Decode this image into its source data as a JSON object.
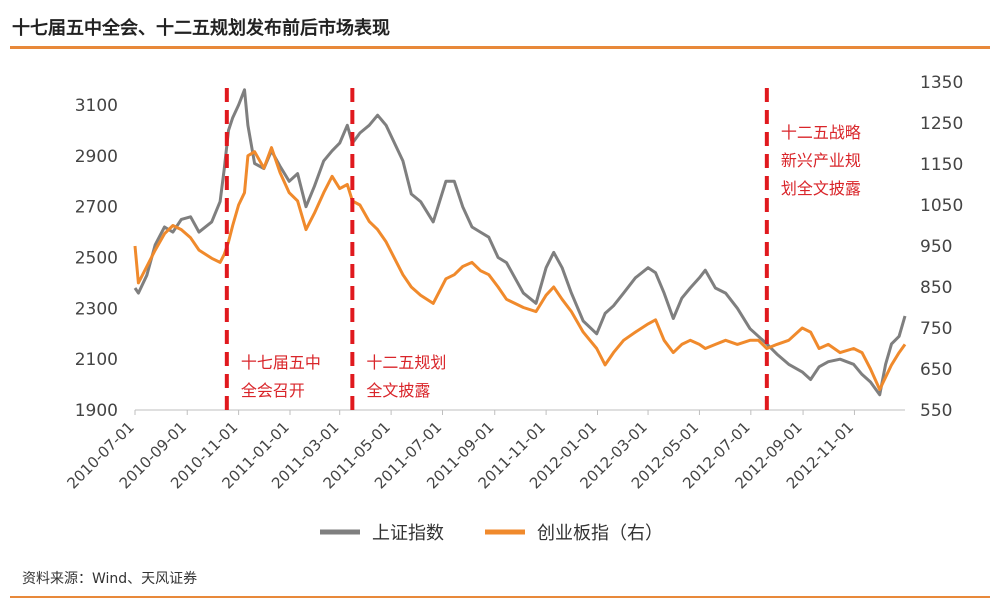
{
  "title": "十七届五中全会、十二五规划发布前后市场表现",
  "source": "资料来源：Wind、天风证券",
  "chart_data": {
    "type": "line",
    "x_ticks": [
      "2010-07-01",
      "2010-09-01",
      "2010-11-01",
      "2011-01-01",
      "2011-03-01",
      "2011-05-01",
      "2011-07-01",
      "2011-09-01",
      "2011-11-01",
      "2012-01-01",
      "2012-03-01",
      "2012-05-01",
      "2012-07-01",
      "2012-09-01",
      "2012-11-01"
    ],
    "y_left": {
      "min": 1900,
      "max": 3100,
      "ticks": [
        "3100",
        "2900",
        "2700",
        "2500",
        "2300",
        "2100",
        "1900"
      ]
    },
    "y_right": {
      "min": 550,
      "max": 1350,
      "ticks": [
        "1350",
        "1250",
        "1150",
        "1050",
        "950",
        "850",
        "750",
        "650",
        "550"
      ]
    },
    "x_range": [
      "2010-07-01",
      "2012-12-31"
    ],
    "series": [
      {
        "name": "上证指数",
        "axis": "left",
        "color": "#7f7f7f",
        "points": [
          [
            "2010-07-01",
            2380
          ],
          [
            "2010-07-05",
            2360
          ],
          [
            "2010-07-15",
            2430
          ],
          [
            "2010-07-25",
            2550
          ],
          [
            "2010-08-05",
            2620
          ],
          [
            "2010-08-15",
            2600
          ],
          [
            "2010-08-25",
            2650
          ],
          [
            "2010-09-05",
            2660
          ],
          [
            "2010-09-15",
            2600
          ],
          [
            "2010-09-30",
            2640
          ],
          [
            "2010-10-10",
            2720
          ],
          [
            "2010-10-15",
            2850
          ],
          [
            "2010-10-20",
            3000
          ],
          [
            "2010-10-25",
            3050
          ],
          [
            "2010-11-01",
            3100
          ],
          [
            "2010-11-08",
            3160
          ],
          [
            "2010-11-12",
            3020
          ],
          [
            "2010-11-20",
            2870
          ],
          [
            "2010-12-01",
            2850
          ],
          [
            "2010-12-10",
            2920
          ],
          [
            "2010-12-20",
            2860
          ],
          [
            "2010-12-31",
            2800
          ],
          [
            "2011-01-10",
            2830
          ],
          [
            "2011-01-20",
            2700
          ],
          [
            "2011-01-30",
            2780
          ],
          [
            "2011-02-10",
            2880
          ],
          [
            "2011-02-20",
            2920
          ],
          [
            "2011-03-01",
            2950
          ],
          [
            "2011-03-10",
            3020
          ],
          [
            "2011-03-16",
            2950
          ],
          [
            "2011-03-25",
            2990
          ],
          [
            "2011-04-05",
            3020
          ],
          [
            "2011-04-15",
            3060
          ],
          [
            "2011-04-25",
            3020
          ],
          [
            "2011-05-05",
            2950
          ],
          [
            "2011-05-15",
            2880
          ],
          [
            "2011-05-25",
            2750
          ],
          [
            "2011-06-05",
            2720
          ],
          [
            "2011-06-20",
            2640
          ],
          [
            "2011-07-05",
            2800
          ],
          [
            "2011-07-15",
            2800
          ],
          [
            "2011-07-25",
            2700
          ],
          [
            "2011-08-05",
            2620
          ],
          [
            "2011-08-15",
            2600
          ],
          [
            "2011-08-25",
            2580
          ],
          [
            "2011-09-05",
            2500
          ],
          [
            "2011-09-15",
            2480
          ],
          [
            "2011-09-25",
            2420
          ],
          [
            "2011-10-05",
            2360
          ],
          [
            "2011-10-20",
            2320
          ],
          [
            "2011-11-01",
            2460
          ],
          [
            "2011-11-10",
            2520
          ],
          [
            "2011-11-20",
            2460
          ],
          [
            "2011-12-01",
            2360
          ],
          [
            "2011-12-15",
            2250
          ],
          [
            "2011-12-31",
            2200
          ],
          [
            "2012-01-10",
            2280
          ],
          [
            "2012-01-20",
            2310
          ],
          [
            "2012-02-01",
            2360
          ],
          [
            "2012-02-15",
            2420
          ],
          [
            "2012-03-01",
            2460
          ],
          [
            "2012-03-10",
            2440
          ],
          [
            "2012-03-20",
            2360
          ],
          [
            "2012-03-31",
            2260
          ],
          [
            "2012-04-10",
            2340
          ],
          [
            "2012-04-20",
            2380
          ],
          [
            "2012-05-01",
            2420
          ],
          [
            "2012-05-08",
            2450
          ],
          [
            "2012-05-20",
            2380
          ],
          [
            "2012-06-01",
            2360
          ],
          [
            "2012-06-15",
            2300
          ],
          [
            "2012-06-30",
            2220
          ],
          [
            "2012-07-10",
            2190
          ],
          [
            "2012-07-20",
            2160
          ],
          [
            "2012-08-01",
            2120
          ],
          [
            "2012-08-15",
            2080
          ],
          [
            "2012-08-31",
            2050
          ],
          [
            "2012-09-10",
            2020
          ],
          [
            "2012-09-20",
            2070
          ],
          [
            "2012-10-01",
            2090
          ],
          [
            "2012-10-15",
            2100
          ],
          [
            "2012-10-31",
            2080
          ],
          [
            "2012-11-10",
            2040
          ],
          [
            "2012-11-20",
            2010
          ],
          [
            "2012-12-01",
            1960
          ],
          [
            "2012-12-08",
            2080
          ],
          [
            "2012-12-15",
            2160
          ],
          [
            "2012-12-24",
            2190
          ],
          [
            "2012-12-31",
            2270
          ]
        ]
      },
      {
        "name": "创业板指（右）",
        "axis": "right",
        "color": "#f08a2c",
        "points": [
          [
            "2010-07-01",
            950
          ],
          [
            "2010-07-05",
            860
          ],
          [
            "2010-07-15",
            900
          ],
          [
            "2010-07-25",
            940
          ],
          [
            "2010-08-05",
            980
          ],
          [
            "2010-08-15",
            1000
          ],
          [
            "2010-08-25",
            990
          ],
          [
            "2010-09-05",
            970
          ],
          [
            "2010-09-15",
            940
          ],
          [
            "2010-09-30",
            920
          ],
          [
            "2010-10-10",
            910
          ],
          [
            "2010-10-15",
            930
          ],
          [
            "2010-10-20",
            960
          ],
          [
            "2010-10-25",
            1000
          ],
          [
            "2010-11-01",
            1050
          ],
          [
            "2010-11-08",
            1080
          ],
          [
            "2010-11-12",
            1170
          ],
          [
            "2010-11-20",
            1180
          ],
          [
            "2010-12-01",
            1140
          ],
          [
            "2010-12-10",
            1190
          ],
          [
            "2010-12-20",
            1130
          ],
          [
            "2010-12-31",
            1080
          ],
          [
            "2011-01-10",
            1060
          ],
          [
            "2011-01-20",
            990
          ],
          [
            "2011-01-30",
            1030
          ],
          [
            "2011-02-10",
            1080
          ],
          [
            "2011-02-20",
            1120
          ],
          [
            "2011-03-01",
            1090
          ],
          [
            "2011-03-10",
            1100
          ],
          [
            "2011-03-16",
            1060
          ],
          [
            "2011-03-25",
            1050
          ],
          [
            "2011-04-05",
            1010
          ],
          [
            "2011-04-15",
            990
          ],
          [
            "2011-04-25",
            960
          ],
          [
            "2011-05-05",
            920
          ],
          [
            "2011-05-15",
            880
          ],
          [
            "2011-05-25",
            850
          ],
          [
            "2011-06-05",
            830
          ],
          [
            "2011-06-20",
            810
          ],
          [
            "2011-07-05",
            870
          ],
          [
            "2011-07-15",
            880
          ],
          [
            "2011-07-25",
            900
          ],
          [
            "2011-08-05",
            910
          ],
          [
            "2011-08-15",
            890
          ],
          [
            "2011-08-25",
            880
          ],
          [
            "2011-09-05",
            850
          ],
          [
            "2011-09-15",
            820
          ],
          [
            "2011-09-25",
            810
          ],
          [
            "2011-10-05",
            800
          ],
          [
            "2011-10-20",
            790
          ],
          [
            "2011-11-01",
            830
          ],
          [
            "2011-11-10",
            850
          ],
          [
            "2011-11-20",
            820
          ],
          [
            "2011-12-01",
            790
          ],
          [
            "2011-12-15",
            740
          ],
          [
            "2011-12-31",
            700
          ],
          [
            "2012-01-10",
            660
          ],
          [
            "2012-01-20",
            690
          ],
          [
            "2012-02-01",
            720
          ],
          [
            "2012-02-15",
            740
          ],
          [
            "2012-03-01",
            760
          ],
          [
            "2012-03-10",
            770
          ],
          [
            "2012-03-20",
            720
          ],
          [
            "2012-03-31",
            690
          ],
          [
            "2012-04-10",
            710
          ],
          [
            "2012-04-20",
            720
          ],
          [
            "2012-05-01",
            710
          ],
          [
            "2012-05-08",
            700
          ],
          [
            "2012-05-20",
            710
          ],
          [
            "2012-06-01",
            720
          ],
          [
            "2012-06-15",
            710
          ],
          [
            "2012-06-30",
            720
          ],
          [
            "2012-07-10",
            720
          ],
          [
            "2012-07-20",
            700
          ],
          [
            "2012-08-01",
            710
          ],
          [
            "2012-08-15",
            720
          ],
          [
            "2012-08-31",
            750
          ],
          [
            "2012-09-10",
            740
          ],
          [
            "2012-09-20",
            700
          ],
          [
            "2012-10-01",
            710
          ],
          [
            "2012-10-15",
            690
          ],
          [
            "2012-10-31",
            700
          ],
          [
            "2012-11-10",
            690
          ],
          [
            "2012-11-20",
            650
          ],
          [
            "2012-12-01",
            600
          ],
          [
            "2012-12-08",
            630
          ],
          [
            "2012-12-15",
            660
          ],
          [
            "2012-12-24",
            690
          ],
          [
            "2012-12-31",
            710
          ]
        ]
      }
    ],
    "events": [
      {
        "date": "2010-10-18",
        "label_lines": [
          "十七届五中",
          "全会召开"
        ]
      },
      {
        "date": "2011-03-16",
        "label_lines": [
          "十二五规划",
          "全文披露"
        ]
      },
      {
        "date": "2012-07-20",
        "label_lines": [
          "十二五战略",
          "新兴产业规",
          "划全文披露"
        ]
      }
    ],
    "legend": {
      "position": "bottom",
      "items": [
        "上证指数",
        "创业板指（右）"
      ]
    },
    "grid": false
  },
  "colors": {
    "accent_rule": "#e8893a",
    "event_line": "#e0191e",
    "event_text": "#d9252a"
  }
}
